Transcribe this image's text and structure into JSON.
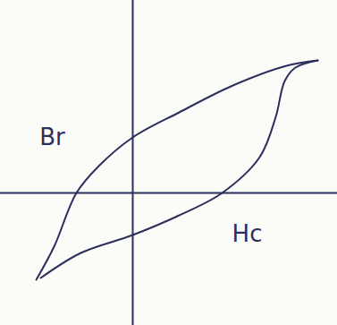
{
  "chart_data": {
    "type": "line",
    "xlim": [
      -14.8,
      22.9
    ],
    "ylim": [
      -14.8,
      21.5
    ],
    "tick_labels": false,
    "grid": false,
    "color": "#2b2f5c",
    "series": [
      {
        "x": [
          -10.8,
          -8.8,
          -6.3,
          -3.8,
          0,
          5.2,
          11.2,
          17.2,
          20.7
        ],
        "values": [
          -9.7,
          -6,
          0,
          3,
          6.2,
          9,
          12,
          14.2,
          14.8
        ]
      },
      {
        "x": [
          20.7,
          18.2,
          17,
          16,
          14.2,
          10,
          5.2,
          0,
          -5.8,
          -10.3
        ],
        "values": [
          14.8,
          14,
          12.5,
          8.5,
          4,
          0,
          -2.5,
          -4.7,
          -6.7,
          -9.5
        ]
      }
    ],
    "annotations": [
      {
        "text": "Br",
        "x": -9,
        "y": 6.2
      },
      {
        "text": "Hc",
        "x": 12.8,
        "y": -4.6
      }
    ]
  }
}
